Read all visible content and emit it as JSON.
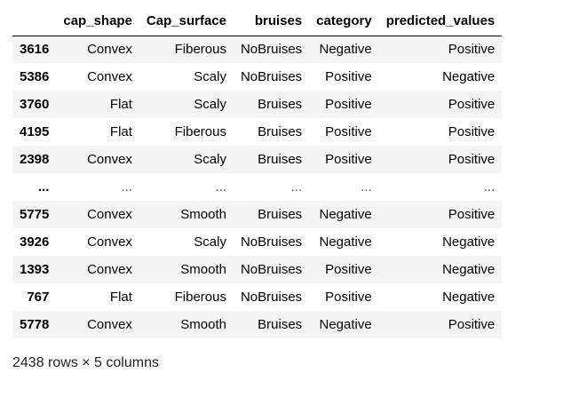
{
  "table": {
    "columns": [
      "cap_shape",
      "Cap_surface",
      "bruises",
      "category",
      "predicted_values"
    ],
    "rows": [
      {
        "index": "3616",
        "cells": [
          "Convex",
          "Fiberous",
          "NoBruises",
          "Negative",
          "Positive"
        ]
      },
      {
        "index": "5386",
        "cells": [
          "Convex",
          "Scaly",
          "NoBruises",
          "Positive",
          "Negative"
        ]
      },
      {
        "index": "3760",
        "cells": [
          "Flat",
          "Scaly",
          "Bruises",
          "Positive",
          "Positive"
        ]
      },
      {
        "index": "4195",
        "cells": [
          "Flat",
          "Fiberous",
          "Bruises",
          "Positive",
          "Positive"
        ]
      },
      {
        "index": "2398",
        "cells": [
          "Convex",
          "Scaly",
          "Bruises",
          "Positive",
          "Positive"
        ]
      },
      {
        "index": "...",
        "cells": [
          "...",
          "...",
          "...",
          "...",
          "..."
        ]
      },
      {
        "index": "5775",
        "cells": [
          "Convex",
          "Smooth",
          "Bruises",
          "Negative",
          "Positive"
        ]
      },
      {
        "index": "3926",
        "cells": [
          "Convex",
          "Scaly",
          "NoBruises",
          "Negative",
          "Negative"
        ]
      },
      {
        "index": "1393",
        "cells": [
          "Convex",
          "Smooth",
          "NoBruises",
          "Positive",
          "Negative"
        ]
      },
      {
        "index": "767",
        "cells": [
          "Flat",
          "Fiberous",
          "NoBruises",
          "Positive",
          "Negative"
        ]
      },
      {
        "index": "5778",
        "cells": [
          "Convex",
          "Smooth",
          "Bruises",
          "Negative",
          "Positive"
        ]
      }
    ]
  },
  "footer": {
    "shape_text": "2438 rows × 5 columns"
  },
  "colors": {
    "stripe": "#f5f5f5",
    "header_rule": "#000000"
  }
}
